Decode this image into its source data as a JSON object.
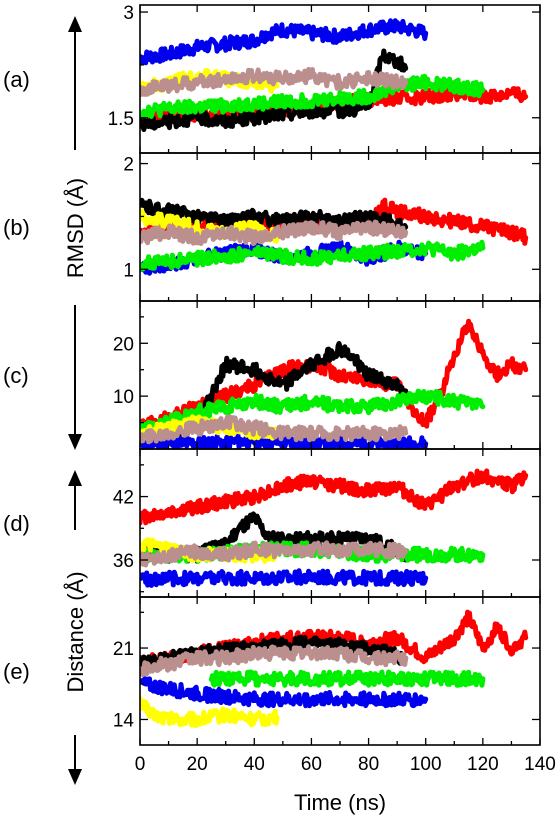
{
  "colors": {
    "black": "#000000",
    "red": "#ff0000",
    "blue": "#0000ee",
    "green": "#00ee00",
    "yellow": "#ffff00",
    "brown": "#bc8f8f"
  },
  "figure": {
    "xlabel": "Time (ns)",
    "ylabel_top": "RMSD (Å)",
    "ylabel_bottom": "Distance (Å)",
    "x_ticks": [
      0,
      20,
      40,
      60,
      80,
      100,
      120,
      140
    ],
    "xlim": [
      0,
      140
    ]
  },
  "chart_data": [
    {
      "type": "line",
      "panel": "(a)",
      "ylim": [
        1.0,
        3.1
      ],
      "y_ticks": [
        1.5,
        3
      ],
      "series": [
        {
          "color": "blue",
          "x": [
            0,
            10,
            20,
            30,
            40,
            45,
            50,
            60,
            70,
            80,
            90,
            100
          ],
          "y": [
            2.35,
            2.4,
            2.5,
            2.55,
            2.6,
            2.7,
            2.75,
            2.7,
            2.65,
            2.75,
            2.8,
            2.7
          ]
        },
        {
          "color": "red",
          "x": [
            0,
            20,
            40,
            60,
            80,
            100,
            110,
            120,
            130,
            135
          ],
          "y": [
            1.45,
            1.55,
            1.6,
            1.65,
            1.75,
            1.8,
            1.85,
            1.8,
            1.85,
            1.8
          ]
        },
        {
          "color": "black",
          "x": [
            0,
            10,
            20,
            30,
            40,
            50,
            60,
            70,
            80,
            85,
            90,
            93
          ],
          "y": [
            1.4,
            1.45,
            1.5,
            1.45,
            1.5,
            1.55,
            1.6,
            1.6,
            1.65,
            2.4,
            2.3,
            2.2
          ]
        },
        {
          "color": "green",
          "x": [
            0,
            20,
            40,
            60,
            80,
            90,
            100,
            110,
            120
          ],
          "y": [
            1.6,
            1.65,
            1.7,
            1.75,
            1.8,
            1.95,
            2.0,
            1.95,
            1.9
          ]
        },
        {
          "color": "yellow",
          "x": [
            0,
            10,
            20,
            30,
            40,
            48
          ],
          "y": [
            1.9,
            2.0,
            2.1,
            2.05,
            2.0,
            1.95
          ]
        },
        {
          "color": "brown",
          "x": [
            0,
            10,
            20,
            30,
            40,
            50,
            60,
            70,
            80,
            93
          ],
          "y": [
            1.9,
            1.95,
            2.0,
            2.05,
            2.1,
            2.05,
            2.1,
            2.0,
            2.05,
            2.0
          ]
        }
      ]
    },
    {
      "type": "line",
      "panel": "(b)",
      "ylim": [
        0.7,
        2.1
      ],
      "y_ticks": [
        1,
        2
      ],
      "series": [
        {
          "color": "red",
          "x": [
            0,
            20,
            40,
            60,
            80,
            85,
            90,
            100,
            110,
            120,
            130,
            135
          ],
          "y": [
            1.35,
            1.4,
            1.45,
            1.4,
            1.45,
            1.6,
            1.55,
            1.5,
            1.45,
            1.4,
            1.35,
            1.3
          ]
        },
        {
          "color": "black",
          "x": [
            0,
            10,
            20,
            30,
            40,
            50,
            60,
            70,
            80,
            93
          ],
          "y": [
            1.6,
            1.55,
            1.5,
            1.45,
            1.5,
            1.45,
            1.5,
            1.45,
            1.5,
            1.4
          ]
        },
        {
          "color": "blue",
          "x": [
            0,
            10,
            20,
            30,
            40,
            50,
            60,
            70,
            80,
            90,
            100
          ],
          "y": [
            1.0,
            1.05,
            1.1,
            1.15,
            1.2,
            1.1,
            1.15,
            1.2,
            1.1,
            1.2,
            1.15
          ]
        },
        {
          "color": "green",
          "x": [
            0,
            20,
            40,
            60,
            80,
            100,
            110,
            120
          ],
          "y": [
            1.05,
            1.1,
            1.15,
            1.1,
            1.15,
            1.2,
            1.15,
            1.2
          ]
        },
        {
          "color": "yellow",
          "x": [
            0,
            10,
            20,
            30,
            40,
            48
          ],
          "y": [
            1.5,
            1.45,
            1.4,
            1.35,
            1.4,
            1.3
          ]
        },
        {
          "color": "brown",
          "x": [
            0,
            10,
            20,
            30,
            40,
            50,
            60,
            70,
            80,
            93
          ],
          "y": [
            1.3,
            1.35,
            1.3,
            1.35,
            1.3,
            1.35,
            1.4,
            1.35,
            1.4,
            1.35
          ]
        }
      ]
    },
    {
      "type": "line",
      "panel": "(c)",
      "ylim": [
        0,
        28
      ],
      "y_ticks": [
        10,
        20
      ],
      "series": [
        {
          "color": "red",
          "x": [
            0,
            10,
            20,
            30,
            40,
            50,
            60,
            70,
            80,
            90,
            95,
            100,
            105,
            110,
            115,
            120,
            125,
            130,
            135
          ],
          "y": [
            4,
            6,
            8,
            10,
            12,
            15,
            16,
            14,
            13,
            12,
            8,
            5,
            10,
            18,
            24,
            18,
            14,
            16,
            15
          ]
        },
        {
          "color": "black",
          "x": [
            0,
            10,
            20,
            25,
            30,
            40,
            50,
            60,
            70,
            75,
            80,
            90,
            93
          ],
          "y": [
            2,
            3,
            5,
            10,
            16,
            15,
            12,
            16,
            19,
            17,
            14,
            12,
            11
          ]
        },
        {
          "color": "green",
          "x": [
            0,
            10,
            20,
            30,
            40,
            50,
            60,
            70,
            80,
            90,
            100,
            110,
            120
          ],
          "y": [
            4,
            5,
            7,
            8,
            9,
            8,
            9,
            8,
            8,
            9,
            10,
            9,
            8
          ]
        },
        {
          "color": "blue",
          "x": [
            0,
            20,
            40,
            60,
            80,
            100
          ],
          "y": [
            1,
            1,
            1.5,
            1,
            1,
            1
          ]
        },
        {
          "color": "yellow",
          "x": [
            0,
            10,
            20,
            30,
            40,
            48
          ],
          "y": [
            3,
            4,
            5,
            4,
            3,
            3
          ]
        },
        {
          "color": "brown",
          "x": [
            0,
            10,
            20,
            30,
            40,
            50,
            60,
            70,
            80,
            93
          ],
          "y": [
            2,
            3,
            4,
            5,
            4,
            3,
            3,
            3,
            3,
            3
          ]
        }
      ]
    },
    {
      "type": "line",
      "panel": "(d)",
      "ylim": [
        32.5,
        46.5
      ],
      "y_ticks": [
        36,
        42
      ],
      "series": [
        {
          "color": "red",
          "x": [
            0,
            10,
            20,
            30,
            40,
            50,
            60,
            70,
            80,
            90,
            100,
            110,
            120,
            130,
            135
          ],
          "y": [
            40,
            40.5,
            41,
            41.5,
            42,
            43,
            43.5,
            43,
            42.5,
            43,
            41,
            43,
            44,
            43,
            44
          ]
        },
        {
          "color": "black",
          "x": [
            0,
            10,
            20,
            30,
            35,
            40,
            45,
            50,
            60,
            70,
            80,
            90,
            93
          ],
          "y": [
            37,
            36.5,
            36.5,
            37.5,
            39,
            40,
            38,
            38,
            38,
            38,
            38,
            37,
            36
          ]
        },
        {
          "color": "green",
          "x": [
            0,
            20,
            40,
            60,
            80,
            100,
            120
          ],
          "y": [
            36.5,
            36.5,
            37,
            37,
            36.5,
            36.5,
            36.5
          ]
        },
        {
          "color": "blue",
          "x": [
            0,
            20,
            40,
            60,
            80,
            100
          ],
          "y": [
            34.2,
            34.3,
            34.3,
            34.4,
            34.3,
            34.3
          ]
        },
        {
          "color": "yellow",
          "x": [
            0,
            10,
            20,
            30,
            40,
            48
          ],
          "y": [
            37.5,
            37,
            36.5,
            36.5,
            36.5,
            36.5
          ]
        },
        {
          "color": "brown",
          "x": [
            0,
            10,
            20,
            30,
            40,
            50,
            60,
            70,
            80,
            93
          ],
          "y": [
            36,
            36.5,
            36.8,
            36.5,
            37,
            36.8,
            37,
            37,
            37,
            36.8
          ]
        }
      ]
    },
    {
      "type": "line",
      "panel": "(e)",
      "ylim": [
        11.5,
        26
      ],
      "y_ticks": [
        14,
        21
      ],
      "series": [
        {
          "color": "red",
          "x": [
            0,
            10,
            20,
            30,
            40,
            50,
            60,
            70,
            80,
            90,
            100,
            110,
            115,
            120,
            125,
            130,
            135
          ],
          "y": [
            19.5,
            20,
            20.5,
            21,
            21.5,
            22,
            22,
            22,
            21.5,
            22,
            20,
            22,
            24,
            21,
            23,
            21,
            22
          ]
        },
        {
          "color": "black",
          "x": [
            0,
            20,
            40,
            60,
            80,
            93
          ],
          "y": [
            19.5,
            20.5,
            21,
            21.5,
            21,
            20
          ]
        },
        {
          "color": "green",
          "x": [
            25,
            40,
            60,
            80,
            100,
            120
          ],
          "y": [
            18,
            18,
            18,
            18,
            18,
            18
          ]
        },
        {
          "color": "blue",
          "x": [
            0,
            10,
            20,
            40,
            60,
            80,
            100
          ],
          "y": [
            17.5,
            17,
            16.5,
            16,
            16,
            16,
            16
          ]
        },
        {
          "color": "yellow",
          "x": [
            0,
            5,
            10,
            20,
            30,
            40,
            48
          ],
          "y": [
            15.5,
            14.5,
            14,
            14,
            14.5,
            14,
            14.2
          ]
        },
        {
          "color": "brown",
          "x": [
            0,
            10,
            20,
            30,
            40,
            50,
            60,
            70,
            80,
            93
          ],
          "y": [
            19,
            19.5,
            20,
            20,
            20.5,
            20.5,
            20.5,
            20.5,
            20,
            20
          ]
        }
      ]
    }
  ]
}
